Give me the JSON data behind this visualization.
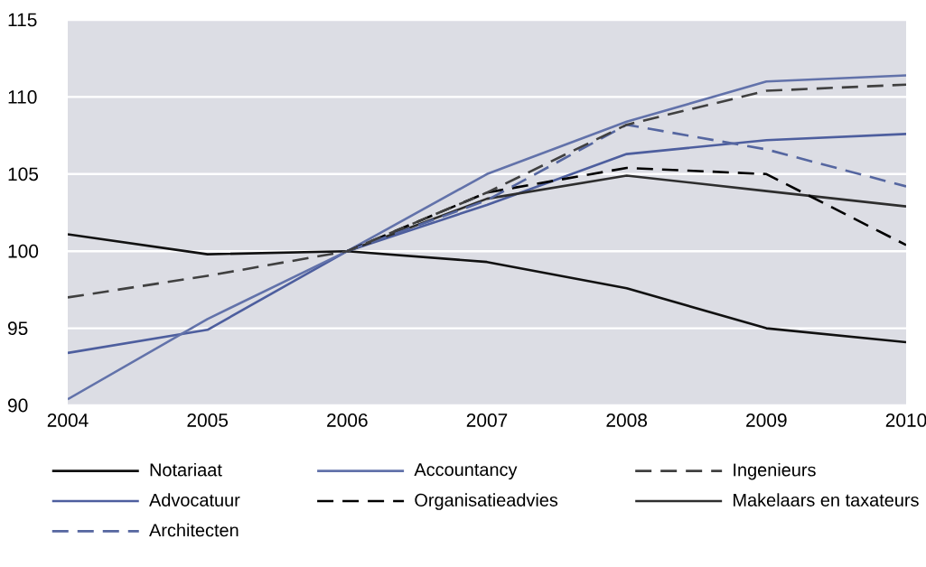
{
  "chart_data": {
    "type": "line",
    "x": [
      2004,
      2005,
      2006,
      2007,
      2008,
      2009,
      2010
    ],
    "xlim": [
      2004,
      2010
    ],
    "xticks": [
      2004,
      2005,
      2006,
      2007,
      2008,
      2009,
      2010
    ],
    "ylim": [
      90,
      115
    ],
    "yticks": [
      90,
      95,
      100,
      105,
      110,
      115
    ],
    "grid": "y",
    "legend": "bottom",
    "series": [
      {
        "name": "Notariaat",
        "color": "#111111",
        "line_style": "solid",
        "values": [
          101.1,
          99.8,
          100,
          99.3,
          97.6,
          95.0,
          94.1
        ]
      },
      {
        "name": "Advocatuur",
        "color": "#4d5e9e",
        "line_style": "solid",
        "values": [
          93.4,
          94.9,
          100,
          103.0,
          106.3,
          107.2,
          107.6
        ]
      },
      {
        "name": "Makelaars en taxateurs",
        "color": "#2e2e2e",
        "line_style": "solid",
        "values": [
          null,
          null,
          100,
          103.4,
          104.9,
          103.9,
          102.9
        ]
      },
      {
        "name": "Accountancy",
        "color": "#6272aa",
        "line_style": "solid",
        "values": [
          90.4,
          95.6,
          100,
          105.0,
          108.4,
          111.0,
          111.4
        ]
      },
      {
        "name": "Organisatieadvies",
        "color": "#000000",
        "line_style": "dashed",
        "values": [
          null,
          null,
          100,
          103.8,
          105.4,
          105.0,
          100.4
        ]
      },
      {
        "name": "Architecten",
        "color": "#5566a0",
        "line_style": "dashed",
        "values": [
          null,
          null,
          100,
          103.3,
          108.2,
          106.6,
          104.2
        ]
      },
      {
        "name": "Ingenieurs",
        "color": "#404040",
        "line_style": "dashed",
        "values": [
          97.0,
          98.4,
          100,
          103.8,
          108.2,
          110.4,
          110.8
        ]
      }
    ]
  }
}
